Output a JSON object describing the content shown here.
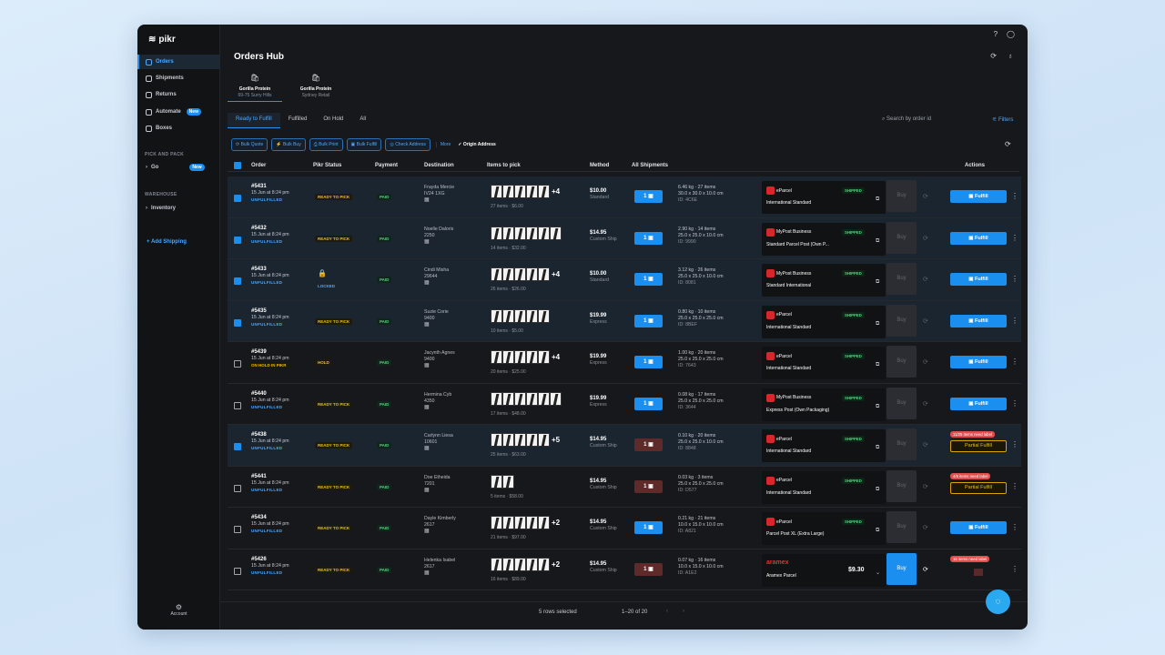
{
  "app": {
    "logo": "pikr"
  },
  "sidebar": {
    "items": [
      {
        "label": "Orders"
      },
      {
        "label": "Shipments"
      },
      {
        "label": "Returns"
      },
      {
        "label": "Automate",
        "badge": "New"
      },
      {
        "label": "Boxes"
      }
    ],
    "section1": "PICK AND PACK",
    "go": {
      "label": "Go",
      "badge": "New"
    },
    "section2": "WAREHOUSE",
    "inventory": "Inventory",
    "add_shipping": "+ Add Shipping",
    "account": "Account"
  },
  "header": {
    "title": "Orders Hub"
  },
  "stores": [
    {
      "name": "Gorilla Protein",
      "sub": "69-75 Surry Hills"
    },
    {
      "name": "Gorilla Protein",
      "sub": "Sydney Retail"
    }
  ],
  "tabs": [
    "Ready to Fulfill",
    "Fulfilled",
    "On Hold",
    "All"
  ],
  "search_placeholder": "Search by order id",
  "filters": "Filters",
  "toolbar": {
    "bulk_quote": "Bulk Quote",
    "bulk_buy": "Bulk Buy",
    "bulk_print": "Bulk Print",
    "bulk_fulfill": "Bulk Fulfill",
    "check_address": "Check Address",
    "more": "More",
    "origin": "Origin Address"
  },
  "columns": {
    "order": "Order",
    "pikr_status": "Pikr Status",
    "payment": "Payment",
    "destination": "Destination",
    "items": "Items to pick",
    "method": "Method",
    "all_shipments": "All Shipments",
    "actions": "Actions"
  },
  "rows": [
    {
      "sel": true,
      "id": "#5431",
      "date": "15 Jun at 8:24 pm",
      "status": "UNFULFILLED",
      "pikr": "READY TO PICK",
      "pay": "PAID",
      "name": "Frayda Mercie",
      "post": "IV24 1XG",
      "imgs": 5,
      "plus": "+4",
      "sum": "27 items · $6.00",
      "price": "$10.00",
      "method": "Standard",
      "ship": "1",
      "w": "6.46 kg · 27 items",
      "dims": "30.0 x 30.0 x 10.0 cm",
      "sid": "ID: 4C6E",
      "carrier": "eParcel",
      "service": "International Standard",
      "shipped": "SHIPPED",
      "buy": "Buy",
      "action": "Fulfill"
    },
    {
      "sel": true,
      "id": "#5432",
      "date": "15 Jun at 8:24 pm",
      "status": "UNFULFILLED",
      "pikr": "READY TO PICK",
      "pay": "PAID",
      "name": "Noelle Daloris",
      "post": "2250",
      "imgs": 6,
      "plus": "",
      "sum": "14 items · $32.00",
      "price": "$14.95",
      "method": "Custom Ship",
      "ship": "1",
      "w": "2.90 kg · 14 items",
      "dims": "25.0 x 25.0 x 10.0 cm",
      "sid": "ID: 9990",
      "carrier": "MyPost Business",
      "service": "Standard Parcel Post (Own P...",
      "shipped": "SHIPPED",
      "buy": "Buy",
      "action": "Fulfill"
    },
    {
      "sel": true,
      "id": "#5433",
      "date": "15 Jun at 8:24 pm",
      "status": "UNFULFILLED",
      "pikr": "LOCKED",
      "pay": "PAID",
      "name": "Cindi Misha",
      "post": "29644",
      "imgs": 5,
      "plus": "+4",
      "sum": "26 items · $26.00",
      "price": "$10.00",
      "method": "Standard",
      "ship": "1",
      "w": "3.12 kg · 26 items",
      "dims": "25.0 x 25.0 x 10.0 cm",
      "sid": "ID: 8081",
      "carrier": "MyPost Business",
      "service": "Standard International",
      "shipped": "SHIPPED",
      "buy": "Buy",
      "action": "Fulfill"
    },
    {
      "sel": true,
      "id": "#5435",
      "date": "15 Jun at 8:24 pm",
      "status": "UNFULFILLED",
      "pikr": "READY TO PICK",
      "pay": "PAID",
      "name": "Suzie Corie",
      "post": "9400",
      "imgs": 5,
      "plus": "",
      "sum": "10 items · $5.00",
      "price": "$19.99",
      "method": "Express",
      "ship": "1",
      "w": "0.80 kg · 10 items",
      "dims": "25.0 x 25.0 x 25.0 cm",
      "sid": "ID: 8BEF",
      "carrier": "eParcel",
      "service": "International Standard",
      "shipped": "SHIPPED",
      "buy": "Buy",
      "action": "Fulfill"
    },
    {
      "sel": false,
      "id": "#5439",
      "date": "15 Jun at 8:24 pm",
      "status": "ON HOLD IN PIKR",
      "pikr": "HOLD",
      "pay": "PAID",
      "name": "Jacynth Agnes",
      "post": "9400",
      "imgs": 5,
      "plus": "+4",
      "sum": "20 items · $25.00",
      "price": "$19.99",
      "method": "Express",
      "ship": "1",
      "w": "1.00 kg · 20 items",
      "dims": "25.0 x 25.0 x 25.0 cm",
      "sid": "ID: 7643",
      "carrier": "eParcel",
      "service": "International Standard",
      "shipped": "SHIPPED",
      "buy": "Buy",
      "action": "Fulfill"
    },
    {
      "sel": false,
      "id": "#5440",
      "date": "15 Jun at 8:24 pm",
      "status": "UNFULFILLED",
      "pikr": "READY TO PICK",
      "pay": "PAID",
      "name": "Hermina Cyb",
      "post": "4350",
      "imgs": 6,
      "plus": "",
      "sum": "17 items · $48.00",
      "price": "$19.99",
      "method": "Express",
      "ship": "1",
      "w": "0.08 kg · 17 items",
      "dims": "25.0 x 25.0 x 25.0 cm",
      "sid": "ID: 3644",
      "carrier": "MyPost Business",
      "service": "Express Post (Own Packaging)",
      "shipped": "SHIPPED",
      "buy": "Buy",
      "action": "Fulfill"
    },
    {
      "sel": true,
      "id": "#5438",
      "date": "15 Jun at 8:24 pm",
      "status": "UNFULFILLED",
      "pikr": "READY TO PICK",
      "pay": "PAID",
      "name": "Carlynn Liesa",
      "post": "10601",
      "imgs": 5,
      "plus": "+5",
      "sum": "25 items · $63.00",
      "price": "$14.95",
      "method": "Custom Ship",
      "ship": "1",
      "red": true,
      "w": "0.10 kg · 20 items",
      "dims": "25.0 x 25.0 x 10.0 cm",
      "sid": "ID: 8848",
      "carrier": "eParcel",
      "service": "International Standard",
      "shipped": "SHIPPED",
      "buy": "Buy",
      "need": "11/25 items need label",
      "action": "Partial Fulfill"
    },
    {
      "sel": false,
      "id": "#5441",
      "date": "15 Jun at 8:24 pm",
      "status": "UNFULFILLED",
      "pikr": "READY TO PICK",
      "pay": "PAID",
      "name": "Doe Etheida",
      "post": "7201",
      "imgs": 2,
      "plus": "",
      "sum": "5 items · $58.00",
      "price": "$14.95",
      "method": "Custom Ship",
      "ship": "1",
      "red": true,
      "w": "0.03 kg · 3 items",
      "dims": "25.0 x 25.0 x 25.0 cm",
      "sid": "ID: D577",
      "carrier": "eParcel",
      "service": "International Standard",
      "shipped": "SHIPPED",
      "buy": "Buy",
      "need": "4/5 items need label",
      "action": "Partial Fulfill"
    },
    {
      "sel": false,
      "id": "#5434",
      "date": "15 Jun at 8:24 pm",
      "status": "UNFULFILLED",
      "pikr": "READY TO PICK",
      "pay": "PAID",
      "name": "Dayle Kimberly",
      "post": "2617",
      "imgs": 5,
      "plus": "+2",
      "sum": "21 items · $97.00",
      "price": "$14.95",
      "method": "Custom Ship",
      "ship": "1",
      "w": "0.21 kg · 21 items",
      "dims": "10.0 x 15.0 x 10.0 cm",
      "sid": "ID: A821",
      "carrier": "eParcel",
      "service": "Parcel Post XL (Extra Large)",
      "shipped": "SHIPPED",
      "buy": "Buy",
      "action": "Fulfill"
    },
    {
      "sel": false,
      "id": "#5426",
      "date": "15 Jun at 8:24 pm",
      "status": "UNFULFILLED",
      "pikr": "READY TO PICK",
      "pay": "PAID",
      "name": "Helenka Isabel",
      "post": "2617",
      "imgs": 5,
      "plus": "+2",
      "sum": "16 items · $89.00",
      "price": "$14.95",
      "method": "Custom Ship",
      "ship": "1",
      "red": true,
      "w": "0.07 kg · 16 items",
      "dims": "10.0 x 15.0 x 10.0 cm",
      "sid": "ID: A1E2",
      "carrier": "aramex",
      "service": "Aramex Parcel",
      "cprice": "$9.30",
      "shipped": "",
      "buy": "Buy",
      "buyOn": true,
      "need": "16 items need label",
      "action": ""
    }
  ],
  "footer": {
    "selected": "5 rows selected",
    "pagination": "1–20 of 20"
  }
}
